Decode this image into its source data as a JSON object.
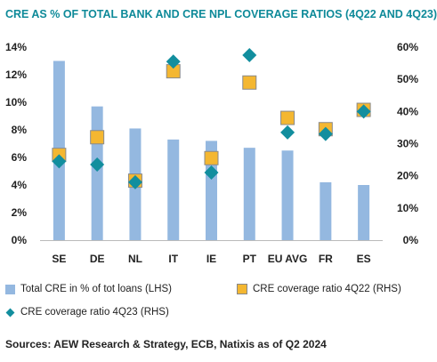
{
  "chart_data": {
    "type": "bar",
    "title": "CRE AS % OF TOTAL BANK AND CRE NPL COVERAGE RATIOS (4Q22 AND 4Q23)",
    "categories": [
      "SE",
      "DE",
      "NL",
      "IT",
      "IE",
      "PT",
      "EU AVG",
      "FR",
      "ES"
    ],
    "series": [
      {
        "name": "Total CRE in % of tot loans (LHS)",
        "type": "bar",
        "axis": "left",
        "color": "#94b8e0",
        "values": [
          13.0,
          9.7,
          8.1,
          7.3,
          7.2,
          6.7,
          6.5,
          4.2,
          4.0
        ]
      },
      {
        "name": "CRE coverage ratio 4Q22 (RHS)",
        "type": "scatter",
        "marker": "square",
        "axis": "right",
        "color": "#f4b731",
        "values": [
          26.5,
          32.0,
          18.5,
          52.5,
          25.5,
          49.0,
          38.0,
          34.5,
          40.5
        ]
      },
      {
        "name": "CRE coverage ratio 4Q23 (RHS)",
        "type": "scatter",
        "marker": "diamond",
        "axis": "right",
        "color": "#128e9e",
        "values": [
          24.5,
          23.5,
          18.0,
          55.5,
          21.0,
          57.5,
          33.5,
          33.0,
          40.0
        ]
      }
    ],
    "y_left": {
      "min": 0,
      "max": 14,
      "step": 2,
      "ticks": [
        "0%",
        "2%",
        "4%",
        "6%",
        "8%",
        "10%",
        "12%",
        "14%"
      ]
    },
    "y_right": {
      "min": 0,
      "max": 60,
      "step": 10,
      "ticks": [
        "0%",
        "10%",
        "20%",
        "30%",
        "40%",
        "50%",
        "60%"
      ]
    },
    "grid": false,
    "legend_position": "bottom"
  },
  "source": "Sources: AEW Research & Strategy, ECB, Natixis as of Q2 2024"
}
